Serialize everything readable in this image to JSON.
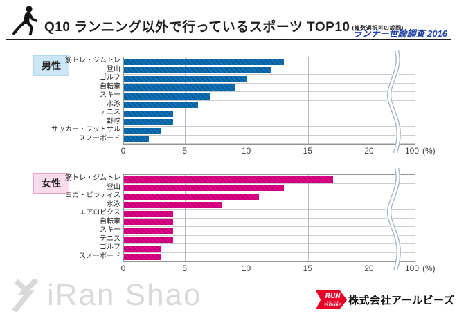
{
  "header": {
    "title": "Q10 ランニング以外で行っているスポーツ TOP10",
    "title_note": "(複数選択可の設問)",
    "survey_label": "ランナー世論調査 2016"
  },
  "chart_data": [
    {
      "type": "bar",
      "orientation": "horizontal",
      "group_label": "男性",
      "categories": [
        "筋トレ・ジムトレ",
        "登山",
        "ゴルフ",
        "自転車",
        "スキー",
        "水泳",
        "テニス",
        "野球",
        "サッカー・フットサル",
        "スノーボード"
      ],
      "values": [
        13,
        12,
        10,
        9,
        7,
        6,
        4,
        4,
        3,
        2
      ],
      "xlim": [
        0,
        20
      ],
      "x_ticks": [
        0,
        5,
        10,
        15,
        20
      ],
      "axis_break": {
        "after": 20,
        "resume_label": "100",
        "unit_label": "(%)"
      },
      "colors": {
        "bar": "#0d72b9",
        "bar_hatch": "#0a5a92",
        "label_bg": "#cde6f7",
        "label_border": "#aed7f0"
      }
    },
    {
      "type": "bar",
      "orientation": "horizontal",
      "group_label": "女性",
      "categories": [
        "筋トレ・ジムトレ",
        "登山",
        "ヨガ・ピラティス",
        "水泳",
        "エアロビクス",
        "自転車",
        "スキー",
        "テニス",
        "ゴルフ",
        "スノーボード"
      ],
      "values": [
        17,
        13,
        11,
        8,
        4,
        4,
        4,
        4,
        3,
        3
      ],
      "xlim": [
        0,
        20
      ],
      "x_ticks": [
        0,
        5,
        10,
        15,
        20
      ],
      "axis_break": {
        "after": 20,
        "resume_label": "100",
        "unit_label": "(%)"
      },
      "colors": {
        "bar": "#e6008b",
        "bar_hatch": "#b4006b",
        "label_bg": "#fadcec",
        "label_border": "#ef9fc8"
      }
    }
  ],
  "footer": {
    "watermark": "iRan Shao",
    "badge": {
      "line1": "RUN",
      "line2": "FOR THE",
      "line3": "FUTURE"
    },
    "company": "株式会社アールビーズ"
  }
}
